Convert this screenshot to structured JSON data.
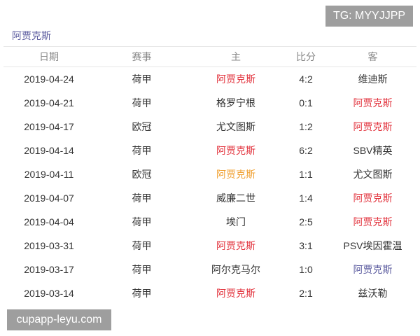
{
  "watermark_top": "TG: MYYJJPP",
  "watermark_bottom": "cupapp-leyu.com",
  "team_title": "阿贾克斯",
  "colors": {
    "win": "#e2323c",
    "draw": "#f0a030",
    "loss": "#5a5a9e"
  },
  "headers": [
    "日期",
    "赛事",
    "主",
    "比分",
    "客"
  ],
  "rows": [
    {
      "date": "2019-04-24",
      "comp": "荷甲",
      "home": "阿贾克斯",
      "score": "4:2",
      "away": "维迪斯",
      "hl": "home",
      "res": "win"
    },
    {
      "date": "2019-04-21",
      "comp": "荷甲",
      "home": "格罗宁根",
      "score": "0:1",
      "away": "阿贾克斯",
      "hl": "away",
      "res": "win"
    },
    {
      "date": "2019-04-17",
      "comp": "欧冠",
      "home": "尤文图斯",
      "score": "1:2",
      "away": "阿贾克斯",
      "hl": "away",
      "res": "win"
    },
    {
      "date": "2019-04-14",
      "comp": "荷甲",
      "home": "阿贾克斯",
      "score": "6:2",
      "away": "SBV精英",
      "hl": "home",
      "res": "win"
    },
    {
      "date": "2019-04-11",
      "comp": "欧冠",
      "home": "阿贾克斯",
      "score": "1:1",
      "away": "尤文图斯",
      "hl": "home",
      "res": "draw"
    },
    {
      "date": "2019-04-07",
      "comp": "荷甲",
      "home": "威廉二世",
      "score": "1:4",
      "away": "阿贾克斯",
      "hl": "away",
      "res": "win"
    },
    {
      "date": "2019-04-04",
      "comp": "荷甲",
      "home": "埃门",
      "score": "2:5",
      "away": "阿贾克斯",
      "hl": "away",
      "res": "win"
    },
    {
      "date": "2019-03-31",
      "comp": "荷甲",
      "home": "阿贾克斯",
      "score": "3:1",
      "away": "PSV埃因霍温",
      "hl": "home",
      "res": "win"
    },
    {
      "date": "2019-03-17",
      "comp": "荷甲",
      "home": "阿尔克马尔",
      "score": "1:0",
      "away": "阿贾克斯",
      "hl": "away",
      "res": "loss"
    },
    {
      "date": "2019-03-14",
      "comp": "荷甲",
      "home": "阿贾克斯",
      "score": "2:1",
      "away": "兹沃勒",
      "hl": "home",
      "res": "win"
    }
  ]
}
